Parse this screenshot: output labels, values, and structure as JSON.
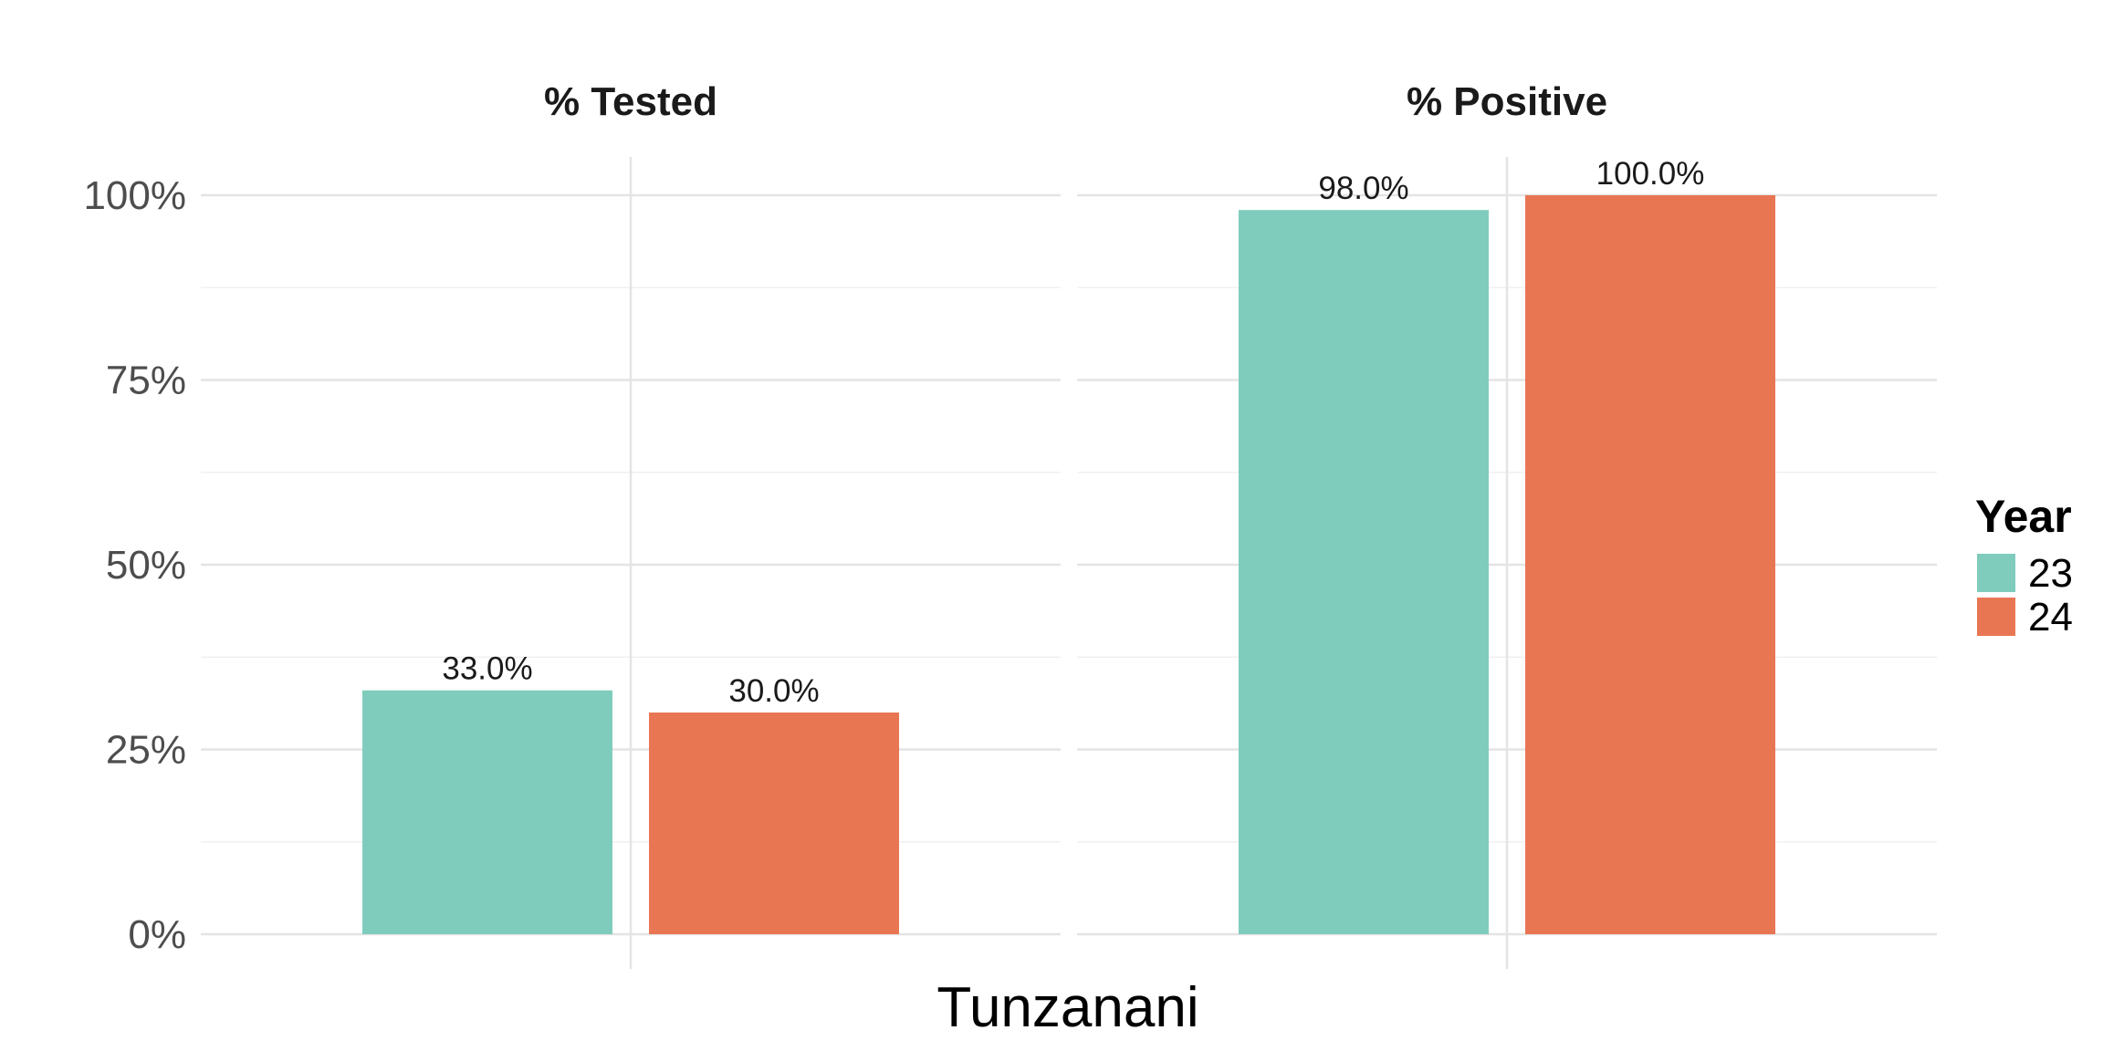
{
  "chart_data": {
    "type": "bar",
    "facets": [
      "% Tested",
      "% Positive"
    ],
    "xlabel": "Tunzanani",
    "ylabel": "",
    "ylim": [
      0,
      1
    ],
    "y_ticks": [
      0,
      0.25,
      0.5,
      0.75,
      1.0
    ],
    "y_tick_labels": [
      "0%",
      "25%",
      "50%",
      "75%",
      "100%"
    ],
    "y_minor_ticks": [
      0.125,
      0.375,
      0.625,
      0.875
    ],
    "legend": {
      "title": "Year",
      "placement": "right"
    },
    "series": [
      {
        "name": "23",
        "color": "#7fccbc",
        "values": [
          0.33,
          0.98
        ],
        "labels": [
          "33.0%",
          "98.0%"
        ]
      },
      {
        "name": "24",
        "color": "#e97653",
        "values": [
          0.3,
          1.0
        ],
        "labels": [
          "30.0%",
          "100.0%"
        ]
      }
    ],
    "grid": true
  }
}
